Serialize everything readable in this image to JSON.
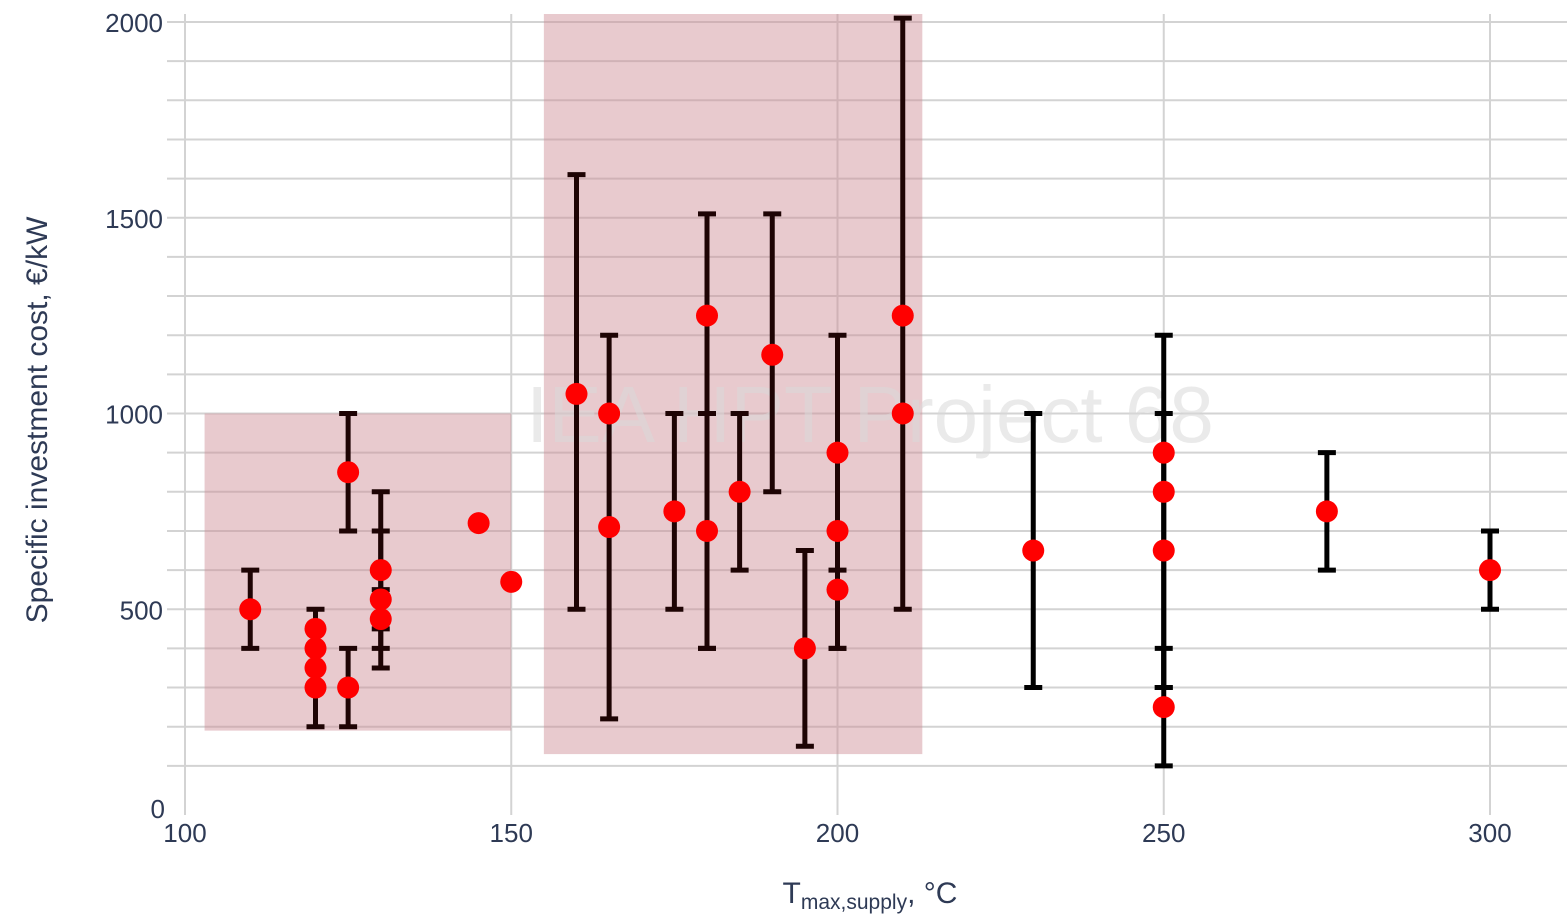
{
  "chart_data": {
    "type": "scatter",
    "watermark": "IEA HPT Project 68",
    "xlabel_main": "T",
    "xlabel_sub": "max,supply",
    "xlabel_unit": ",  °C",
    "ylabel": "Specific investment cost, €/kW",
    "xlim": [
      100,
      310
    ],
    "ylim": [
      0,
      2000
    ],
    "xticks": [
      100,
      150,
      200,
      250,
      300
    ],
    "yticks": [
      0,
      500,
      1000,
      1500,
      2000
    ],
    "grid": true,
    "colors": {
      "point": "#ff0000",
      "errorbar_dark": "#1e0404",
      "errorbar_black": "#000000",
      "region": "#cc8a93",
      "grid": "#d3d3d3",
      "text": "#2e3a55"
    },
    "regions": [
      {
        "x": [
          103,
          150
        ],
        "y": [
          190,
          1000
        ]
      },
      {
        "x": [
          155,
          213
        ],
        "y": [
          130,
          2000
        ]
      }
    ],
    "errorbars": [
      {
        "x": 110,
        "low": 400,
        "high": 600
      },
      {
        "x": 120,
        "low": 200,
        "high": 500
      },
      {
        "x": 125,
        "low": 700,
        "high": 1000
      },
      {
        "x": 125,
        "low": 200,
        "high": 400
      },
      {
        "x": 130,
        "low": 400,
        "high": 800
      },
      {
        "x": 130,
        "low": 350,
        "high": 700
      },
      {
        "x": 130,
        "low": 450,
        "high": 550
      },
      {
        "x": 160,
        "low": 500,
        "high": 1610
      },
      {
        "x": 165,
        "low": 220,
        "high": 1200
      },
      {
        "x": 175,
        "low": 500,
        "high": 1000
      },
      {
        "x": 180,
        "low": 400,
        "high": 1510
      },
      {
        "x": 180,
        "low": 400,
        "high": 1000
      },
      {
        "x": 185,
        "low": 600,
        "high": 1000
      },
      {
        "x": 190,
        "low": 800,
        "high": 1510
      },
      {
        "x": 195,
        "low": 150,
        "high": 650
      },
      {
        "x": 200,
        "low": 400,
        "high": 1200
      },
      {
        "x": 200,
        "low": 400,
        "high": 600
      },
      {
        "x": 210,
        "low": 500,
        "high": 2010
      },
      {
        "x": 230,
        "low": 300,
        "high": 1000
      },
      {
        "x": 250,
        "low": 300,
        "high": 1200
      },
      {
        "x": 250,
        "low": 100,
        "high": 400
      },
      {
        "x": 250,
        "low": 300,
        "high": 1000
      },
      {
        "x": 275,
        "low": 600,
        "high": 900
      },
      {
        "x": 300,
        "low": 500,
        "high": 700
      }
    ],
    "points": [
      {
        "x": 110,
        "y": 500
      },
      {
        "x": 120,
        "y": 450
      },
      {
        "x": 120,
        "y": 400
      },
      {
        "x": 120,
        "y": 350
      },
      {
        "x": 120,
        "y": 300
      },
      {
        "x": 125,
        "y": 850
      },
      {
        "x": 125,
        "y": 300
      },
      {
        "x": 130,
        "y": 600
      },
      {
        "x": 130,
        "y": 525
      },
      {
        "x": 130,
        "y": 475
      },
      {
        "x": 145,
        "y": 720
      },
      {
        "x": 150,
        "y": 570
      },
      {
        "x": 160,
        "y": 1050
      },
      {
        "x": 165,
        "y": 1000
      },
      {
        "x": 165,
        "y": 710
      },
      {
        "x": 175,
        "y": 750
      },
      {
        "x": 180,
        "y": 1250
      },
      {
        "x": 180,
        "y": 700
      },
      {
        "x": 185,
        "y": 800
      },
      {
        "x": 190,
        "y": 1150
      },
      {
        "x": 195,
        "y": 400
      },
      {
        "x": 200,
        "y": 900
      },
      {
        "x": 200,
        "y": 700
      },
      {
        "x": 200,
        "y": 550
      },
      {
        "x": 210,
        "y": 1250
      },
      {
        "x": 210,
        "y": 1000
      },
      {
        "x": 230,
        "y": 650
      },
      {
        "x": 250,
        "y": 900
      },
      {
        "x": 250,
        "y": 800
      },
      {
        "x": 250,
        "y": 650
      },
      {
        "x": 250,
        "y": 250
      },
      {
        "x": 275,
        "y": 750
      },
      {
        "x": 300,
        "y": 600
      }
    ]
  }
}
